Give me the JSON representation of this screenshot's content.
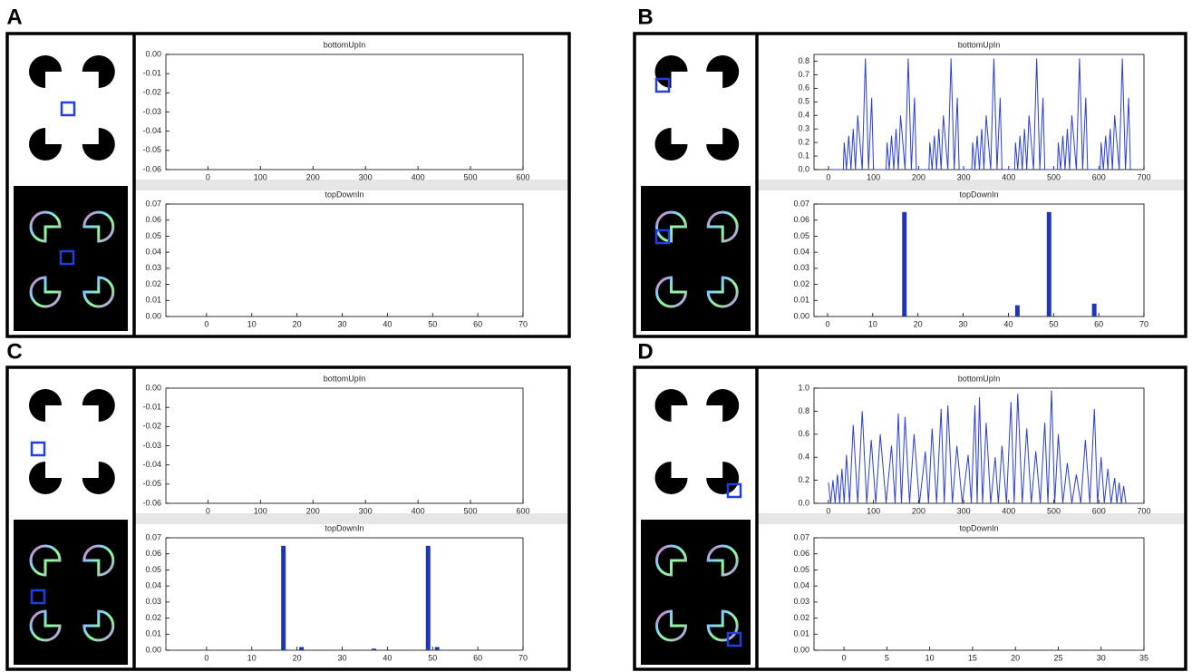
{
  "chart_data": [
    {
      "panel": "A",
      "type": "line",
      "title": "bottomUpIn",
      "xlim": [
        -80,
        600
      ],
      "xticks": [
        0,
        100,
        200,
        300,
        400,
        500,
        600
      ],
      "ylim": [
        -0.06,
        0
      ],
      "yticks": [
        -0.06,
        -0.05,
        -0.04,
        -0.03,
        -0.02,
        -0.01,
        {
          "value": 0,
          "label": "0.00"
        }
      ],
      "series": []
    },
    {
      "type": "bar",
      "title": "topDownIn",
      "xlim": [
        -9,
        70
      ],
      "xticks": [
        0,
        10,
        20,
        30,
        40,
        50,
        60,
        70
      ],
      "ylim": [
        0,
        0.07
      ],
      "yticks": [
        {
          "value": 0,
          "label": "0.00"
        },
        0.01,
        0.02,
        0.03,
        0.04,
        0.05,
        0.06,
        0.07
      ],
      "color": "#1f35b5",
      "x": [],
      "values": []
    },
    {
      "panel": "B",
      "type": "line",
      "title": "bottomUpIn",
      "xlim": [
        -32,
        700
      ],
      "xticks": [
        0,
        100,
        200,
        300,
        400,
        500,
        600,
        700
      ],
      "ylim": [
        0,
        0.85
      ],
      "yticks": [
        {
          "value": 0,
          "label": "0.0"
        },
        0.1,
        0.2,
        0.3,
        0.4,
        0.5,
        0.6,
        0.7,
        0.8
      ],
      "series": [
        {
          "color": "#2a3fd0",
          "x": [
            0,
            33,
            35,
            40,
            45,
            50,
            55,
            60,
            65,
            75,
            82,
            89,
            96,
            100,
            128,
            130,
            135,
            140,
            145,
            150,
            155,
            160,
            170,
            177,
            184,
            191,
            195,
            223,
            225,
            230,
            235,
            240,
            245,
            250,
            255,
            265,
            272,
            279,
            286,
            290,
            318,
            320,
            325,
            330,
            335,
            340,
            345,
            350,
            360,
            367,
            374,
            381,
            385,
            413,
            415,
            420,
            425,
            430,
            435,
            440,
            445,
            455,
            462,
            469,
            476,
            480,
            508,
            510,
            515,
            520,
            525,
            530,
            535,
            540,
            550,
            557,
            564,
            571,
            575,
            603,
            605,
            610,
            615,
            620,
            625,
            630,
            635,
            645,
            652,
            659,
            666,
            670
          ],
          "values": [
            0,
            0,
            0.2,
            0,
            0.25,
            0,
            0.3,
            0,
            0.4,
            0,
            0.82,
            0,
            0.53,
            0,
            0,
            0.2,
            0,
            0.25,
            0,
            0.3,
            0,
            0.4,
            0,
            0.82,
            0,
            0.53,
            0,
            0,
            0.2,
            0,
            0.25,
            0,
            0.3,
            0,
            0.4,
            0,
            0.82,
            0,
            0.53,
            0,
            0,
            0.2,
            0,
            0.25,
            0,
            0.3,
            0,
            0.4,
            0,
            0.82,
            0,
            0.53,
            0,
            0,
            0.2,
            0,
            0.25,
            0,
            0.3,
            0,
            0.4,
            0,
            0.82,
            0,
            0.53,
            0,
            0,
            0.2,
            0,
            0.25,
            0,
            0.3,
            0,
            0.4,
            0,
            0.82,
            0,
            0.53,
            0,
            0,
            0.2,
            0,
            0.25,
            0,
            0.3,
            0,
            0.4,
            0,
            0.82,
            0,
            0.53,
            0
          ]
        }
      ]
    },
    {
      "type": "bar",
      "title": "topDownIn",
      "xlim": [
        -3,
        70
      ],
      "xticks": [
        0,
        10,
        20,
        30,
        40,
        50,
        60,
        70
      ],
      "ylim": [
        0,
        0.07
      ],
      "yticks": [
        {
          "value": 0,
          "label": "0.00"
        },
        0.01,
        0.02,
        0.03,
        0.04,
        0.05,
        0.06,
        0.07
      ],
      "color": "#1f35b5",
      "x": [
        17,
        42,
        49,
        59
      ],
      "values": [
        0.065,
        0.007,
        0.065,
        0.008
      ]
    },
    {
      "panel": "C",
      "type": "line",
      "title": "bottomUpIn",
      "xlim": [
        -80,
        600
      ],
      "xticks": [
        0,
        100,
        200,
        300,
        400,
        500,
        600
      ],
      "ylim": [
        -0.06,
        0
      ],
      "yticks": [
        -0.06,
        -0.05,
        -0.04,
        -0.03,
        -0.02,
        -0.01,
        {
          "value": 0,
          "label": "0.00"
        }
      ],
      "series": []
    },
    {
      "type": "bar",
      "title": "topDownIn",
      "xlim": [
        -9,
        70
      ],
      "xticks": [
        0,
        10,
        20,
        30,
        40,
        50,
        60,
        70
      ],
      "ylim": [
        0,
        0.07
      ],
      "yticks": [
        {
          "value": 0,
          "label": "0.00"
        },
        0.01,
        0.02,
        0.03,
        0.04,
        0.05,
        0.06,
        0.07
      ],
      "color": "#1f35b5",
      "x": [
        17,
        21,
        37,
        49,
        51
      ],
      "values": [
        0.065,
        0.002,
        0.001,
        0.065,
        0.002
      ]
    },
    {
      "panel": "D",
      "type": "line",
      "title": "bottomUpIn",
      "xlim": [
        -32,
        700
      ],
      "xticks": [
        0,
        100,
        200,
        300,
        400,
        500,
        600,
        700
      ],
      "ylim": [
        0,
        1.0
      ],
      "yticks": [
        {
          "value": 0,
          "label": "0.0"
        },
        0.2,
        0.4,
        0.6,
        0.8,
        {
          "value": 1,
          "label": "1.0"
        }
      ],
      "series": [
        {
          "color": "#2a3fd0",
          "x": [
            0,
            5,
            10,
            15,
            20,
            25,
            30,
            35,
            40,
            47,
            55,
            65,
            75,
            85,
            95,
            105,
            115,
            128,
            140,
            148,
            155,
            162,
            170,
            180,
            190,
            202,
            215,
            222,
            230,
            240,
            250,
            257,
            265,
            275,
            285,
            297,
            310,
            317,
            325,
            330,
            335,
            342,
            350,
            360,
            370,
            377,
            385,
            395,
            405,
            412,
            420,
            430,
            440,
            450,
            460,
            470,
            480,
            487,
            495,
            502,
            510,
            520,
            530,
            540,
            550,
            560,
            570,
            580,
            590,
            597,
            605,
            612,
            620,
            627,
            635,
            640,
            645,
            650,
            655,
            660
          ],
          "values": [
            0.18,
            0,
            0.2,
            0,
            0.25,
            0,
            0.3,
            0,
            0.42,
            0,
            0.68,
            0,
            0.8,
            0,
            0.55,
            0,
            0.6,
            0,
            0.5,
            0,
            0.78,
            0,
            0.75,
            0,
            0.6,
            0,
            0.45,
            0,
            0.65,
            0,
            0.82,
            0,
            0.85,
            0,
            0.5,
            0,
            0.42,
            0,
            0.85,
            0,
            0.92,
            0,
            0.7,
            0,
            0.4,
            0,
            0.5,
            0,
            0.88,
            0,
            0.95,
            0,
            0.65,
            0,
            0.45,
            0,
            0.7,
            0,
            0.98,
            0,
            0.6,
            0,
            0.35,
            0,
            0.25,
            0,
            0.55,
            0,
            0.82,
            0,
            0.4,
            0,
            0.3,
            0,
            0.22,
            0,
            0.18,
            0,
            0.15,
            0
          ]
        }
      ]
    },
    {
      "type": "bar",
      "title": "topDownIn",
      "xlim": [
        -3.5,
        35
      ],
      "xticks": [
        0,
        5,
        10,
        15,
        20,
        25,
        30,
        35
      ],
      "ylim": [
        0,
        0.07
      ],
      "yticks": [
        {
          "value": 0,
          "label": "0.00"
        },
        0.01,
        0.02,
        0.03,
        0.04,
        0.05,
        0.06,
        0.07
      ],
      "color": "#1f35b5",
      "x": [],
      "values": []
    }
  ]
}
